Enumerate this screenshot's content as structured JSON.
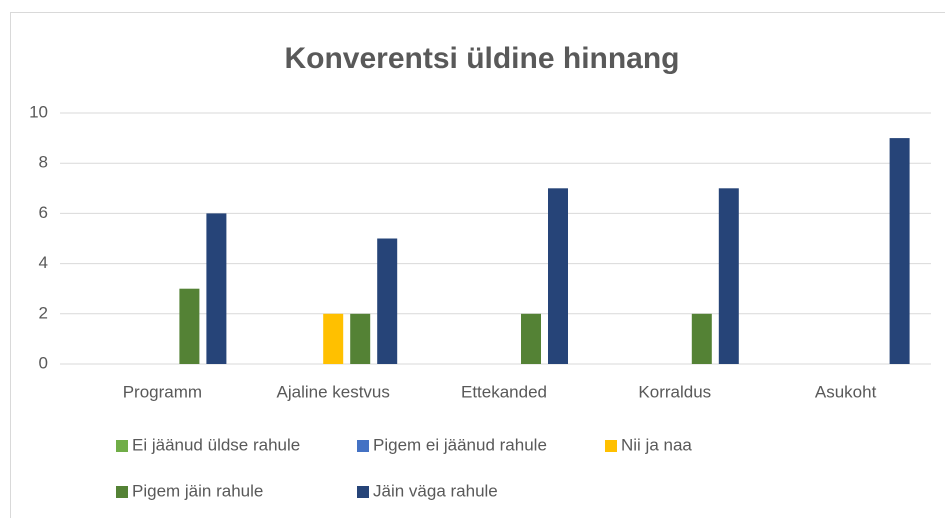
{
  "chart_data": {
    "type": "bar",
    "title": "Konverentsi üldine hinnang",
    "categories": [
      "Programm",
      "Ajaline kestvus",
      "Ettekanded",
      "Korraldus",
      "Asukoht"
    ],
    "series": [
      {
        "name": "Ei jäänud üldse rahule",
        "color": "#70ad47",
        "values": [
          0,
          0,
          0,
          0,
          0
        ]
      },
      {
        "name": "Pigem ei jäänud rahule",
        "color": "#4472c4",
        "values": [
          0,
          0,
          0,
          0,
          0
        ]
      },
      {
        "name": "Nii ja naa",
        "color": "#ffc000",
        "values": [
          0,
          2,
          0,
          0,
          0
        ]
      },
      {
        "name": "Pigem jäin rahule",
        "color": "#548235",
        "values": [
          3,
          2,
          2,
          2,
          0
        ]
      },
      {
        "name": "Jäin väga rahule",
        "color": "#264478",
        "values": [
          6,
          5,
          7,
          7,
          9
        ]
      }
    ],
    "ylim": [
      0,
      10
    ],
    "yticks": [
      0,
      2,
      4,
      6,
      8,
      10
    ],
    "grid": true,
    "legend": "bottom"
  }
}
